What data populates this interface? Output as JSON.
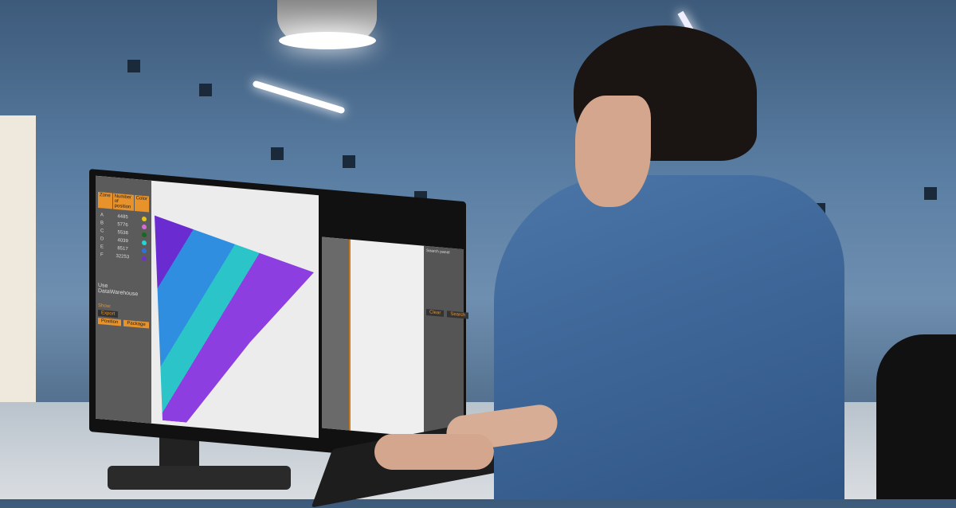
{
  "screen_left": {
    "headers": [
      "Zone",
      "Number of position",
      "Color"
    ],
    "zones": [
      {
        "zone": "A",
        "count": "4485",
        "color": "#e6c317"
      },
      {
        "zone": "B",
        "count": "5776",
        "color": "#d56ad8"
      },
      {
        "zone": "C",
        "count": "5538",
        "color": "#136b1e"
      },
      {
        "zone": "D",
        "count": "4039",
        "color": "#21d6d6"
      },
      {
        "zone": "E",
        "count": "8517",
        "color": "#2b74e0"
      },
      {
        "zone": "F",
        "count": "32253",
        "color": "#7232c9"
      }
    ],
    "warehouse_label": "Use DataWarehouse",
    "show_label": "Show:",
    "export": "Export",
    "position": "Position",
    "package": "Package"
  },
  "screen_right": {
    "search_panel": "Search panel",
    "clear": "Clear",
    "search": "Search"
  }
}
